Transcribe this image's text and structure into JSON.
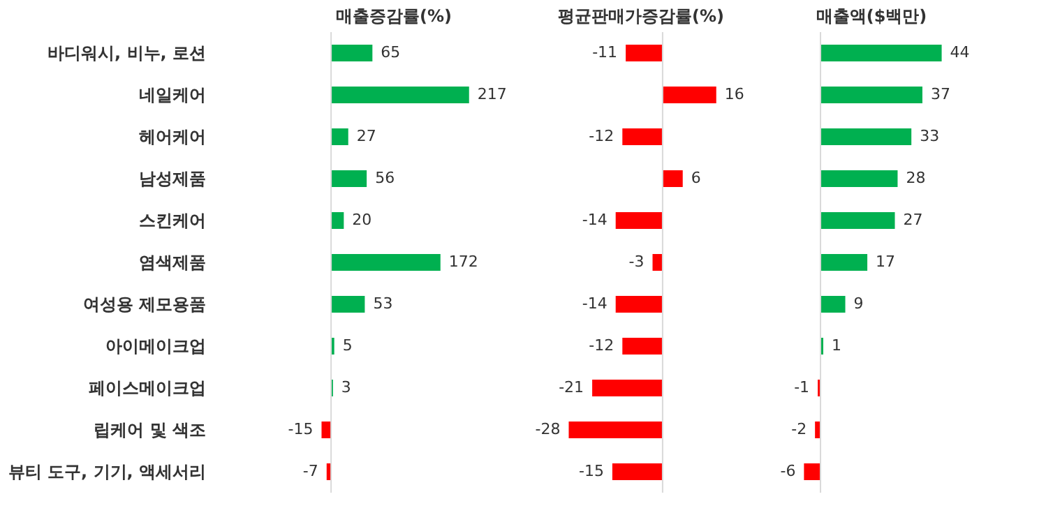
{
  "chart_data": [
    {
      "type": "bar",
      "orientation": "horizontal",
      "title": "매출증감률(%)",
      "tick_labels": "y",
      "categories": [
        "바디워시, 비누, 로션",
        "네일케어",
        "헤어케어",
        "남성제품",
        "스킨케어",
        "염색제품",
        "여성용 제모용품",
        "아이메이크업",
        "페이스메이크업",
        "립케어 및 색조",
        "뷰티 도구, 기기, 액세서리"
      ],
      "values": [
        65,
        217,
        27,
        56,
        20,
        172,
        53,
        5,
        3,
        -15,
        -7
      ],
      "data_labels": true,
      "colors": [
        "#00b050",
        "#00b050",
        "#00b050",
        "#00b050",
        "#00b050",
        "#00b050",
        "#00b050",
        "#00b050",
        "#00b050",
        "#ff0000",
        "#ff0000"
      ]
    },
    {
      "type": "bar",
      "orientation": "horizontal",
      "title": "평균판매가증감률(%)",
      "tick_labels": false,
      "categories": [
        null,
        null,
        null,
        null,
        null,
        null,
        null,
        null,
        null,
        null,
        null
      ],
      "values": [
        -11,
        16,
        -12,
        6,
        -14,
        -3,
        -14,
        -12,
        -21,
        -28,
        -15
      ],
      "data_labels": true,
      "colors": [
        "#ff0000",
        "#ff0000",
        "#ff0000",
        "#ff0000",
        "#ff0000",
        "#ff0000",
        "#ff0000",
        "#ff0000",
        "#ff0000",
        "#ff0000",
        "#ff0000"
      ]
    },
    {
      "type": "bar",
      "orientation": "horizontal",
      "title": "매출액($백만)",
      "tick_labels": false,
      "categories": [
        null,
        null,
        null,
        null,
        null,
        null,
        null,
        null,
        null,
        null,
        null
      ],
      "values": [
        44,
        37,
        33,
        28,
        27,
        17,
        9,
        1,
        -1,
        -2,
        -6
      ],
      "data_labels": true,
      "colors": [
        "#00b050",
        "#00b050",
        "#00b050",
        "#00b050",
        "#00b050",
        "#00b050",
        "#00b050",
        "#00b050",
        "#ff0000",
        "#ff0000",
        "#ff0000"
      ]
    }
  ]
}
